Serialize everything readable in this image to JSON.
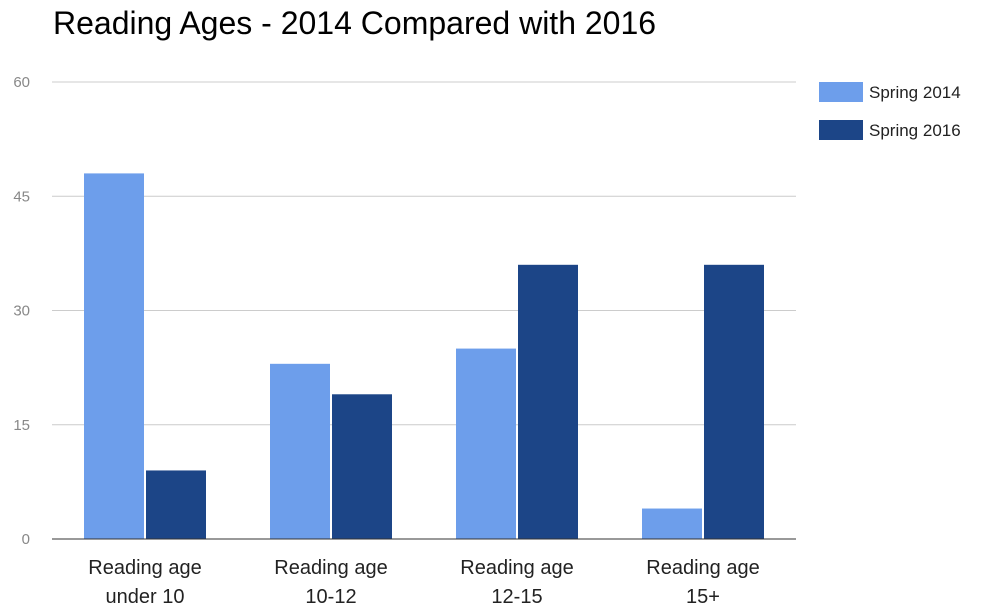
{
  "chart_data": {
    "type": "bar",
    "title": "Reading Ages - 2014 Compared with 2016",
    "categories": [
      [
        "Reading age",
        "under 10"
      ],
      [
        "Reading age",
        "10-12"
      ],
      [
        "Reading age",
        "12-15"
      ],
      [
        "Reading age",
        "15+"
      ]
    ],
    "series": [
      {
        "name": "Spring 2014",
        "color": "#6d9eeb",
        "values": [
          48,
          23,
          25,
          4
        ]
      },
      {
        "name": "Spring 2016",
        "color": "#1c4587",
        "values": [
          9,
          19,
          36,
          36
        ]
      }
    ],
    "xlabel": "",
    "ylabel": "",
    "ylim": [
      0,
      60
    ],
    "yticks": [
      "0",
      "15",
      "30",
      "45",
      "60"
    ],
    "grid": true,
    "legend_position": "right"
  }
}
